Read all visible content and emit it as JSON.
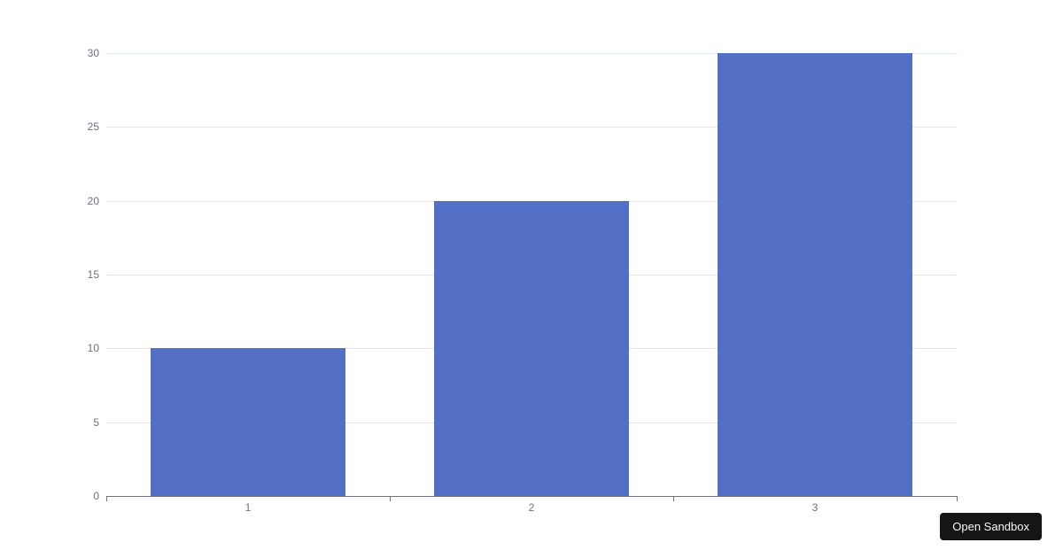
{
  "chart_data": {
    "type": "bar",
    "categories": [
      "1",
      "2",
      "3"
    ],
    "values": [
      10,
      20,
      30
    ],
    "title": "",
    "xlabel": "",
    "ylabel": "",
    "ylim": [
      0,
      30
    ],
    "y_ticks": [
      0,
      5,
      10,
      15,
      20,
      25,
      30
    ],
    "grid": true,
    "legend": false,
    "colors": {
      "bar": "#5470C6",
      "axis_line": "#6E7079",
      "tick_label": "#6E7079",
      "gridline": "#E0E6F1",
      "background": "#FFFFFF"
    }
  },
  "embed": {
    "open_sandbox_label": "Open Sandbox",
    "button_bg": "#151515",
    "button_text_color": "#F7F8F8"
  }
}
